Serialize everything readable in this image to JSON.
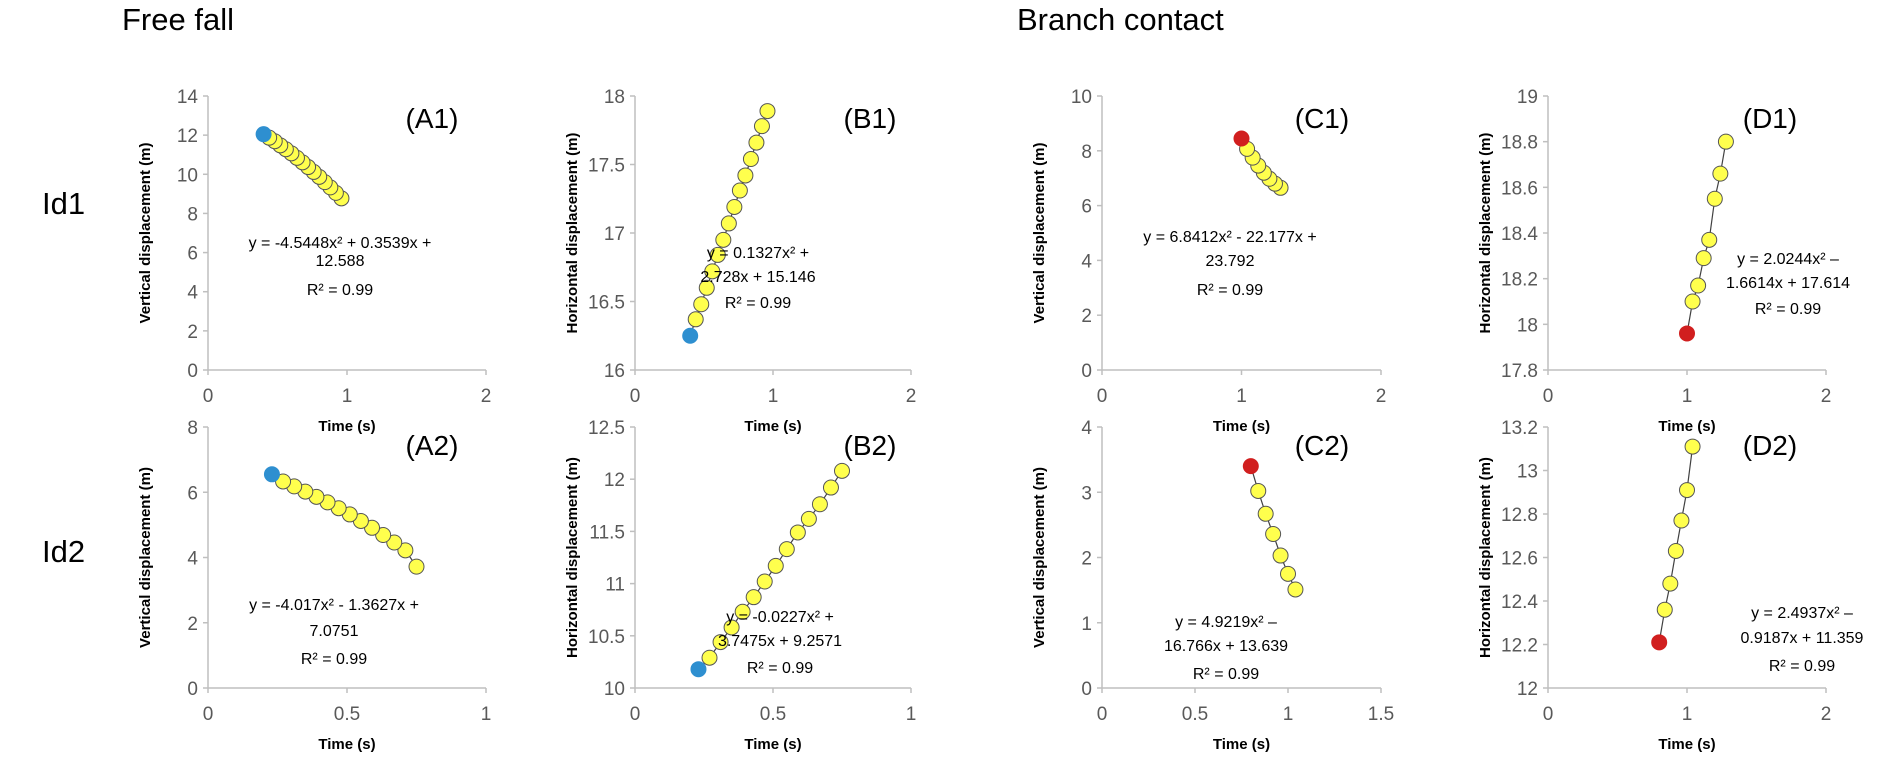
{
  "headings": {
    "free_fall": "Free fall",
    "branch_contact": "Branch contact"
  },
  "rows": [
    "Id1",
    "Id2"
  ],
  "colors": {
    "point_fill": "#ffff4d",
    "point_stroke": "#555555",
    "start_blue": "#2e8fd0",
    "start_red": "#d11f1f",
    "axis": "#bfbfbf",
    "line": "#404040"
  },
  "chart_data": [
    {
      "id": "A1",
      "type": "scatter",
      "panel_label": "(A1)",
      "xlabel": "Time (s)",
      "ylabel": "Vertical displacement (m)",
      "xlim": [
        0,
        2
      ],
      "ylim": [
        0,
        14
      ],
      "xticks": [
        "0",
        "1",
        "2"
      ],
      "xtickvals": [
        0,
        1,
        2
      ],
      "yticks": [
        "0",
        "2",
        "4",
        "6",
        "8",
        "10",
        "12",
        "14"
      ],
      "ytickvals": [
        0,
        2,
        4,
        6,
        8,
        10,
        12,
        14
      ],
      "start_color": "blue",
      "points": [
        [
          0.4,
          12.05
        ],
        [
          0.44,
          11.87
        ],
        [
          0.48,
          11.69
        ],
        [
          0.52,
          11.48
        ],
        [
          0.56,
          11.28
        ],
        [
          0.6,
          11.07
        ],
        [
          0.64,
          10.84
        ],
        [
          0.68,
          10.61
        ],
        [
          0.72,
          10.37
        ],
        [
          0.76,
          10.12
        ],
        [
          0.8,
          9.87
        ],
        [
          0.84,
          9.6
        ],
        [
          0.88,
          9.33
        ],
        [
          0.92,
          9.05
        ],
        [
          0.96,
          8.77
        ]
      ],
      "equation": [
        "y = -4.5448x² + 0.3539x +",
        "12.588",
        "R² = 0.99"
      ]
    },
    {
      "id": "B1",
      "type": "scatter",
      "panel_label": "(B1)",
      "xlabel": "Time (s)",
      "ylabel": "Horizontal displacement (m)",
      "xlim": [
        0,
        2
      ],
      "ylim": [
        16,
        18
      ],
      "xticks": [
        "0",
        "1",
        "2"
      ],
      "xtickvals": [
        0,
        1,
        2
      ],
      "yticks": [
        "16",
        "16.5",
        "17",
        "17.5",
        "18"
      ],
      "ytickvals": [
        16,
        16.5,
        17,
        17.5,
        18
      ],
      "start_color": "blue",
      "points": [
        [
          0.4,
          16.25
        ],
        [
          0.44,
          16.37
        ],
        [
          0.48,
          16.48
        ],
        [
          0.52,
          16.6
        ],
        [
          0.56,
          16.72
        ],
        [
          0.6,
          16.84
        ],
        [
          0.64,
          16.95
        ],
        [
          0.68,
          17.07
        ],
        [
          0.72,
          17.19
        ],
        [
          0.76,
          17.31
        ],
        [
          0.8,
          17.42
        ],
        [
          0.84,
          17.54
        ],
        [
          0.88,
          17.66
        ],
        [
          0.92,
          17.78
        ],
        [
          0.96,
          17.89
        ]
      ],
      "equation": [
        "y = 0.1327x² +",
        "2.728x + 15.146",
        "R² = 0.99"
      ]
    },
    {
      "id": "C1",
      "type": "scatter",
      "panel_label": "(C1)",
      "xlabel": "Time (s)",
      "ylabel": "Vertical displacement (m)",
      "xlim": [
        0,
        2
      ],
      "ylim": [
        0,
        10
      ],
      "xticks": [
        "0",
        "1",
        "2"
      ],
      "xtickvals": [
        0,
        1,
        2
      ],
      "yticks": [
        "0",
        "2",
        "4",
        "6",
        "8",
        "10"
      ],
      "ytickvals": [
        0,
        2,
        4,
        6,
        8,
        10
      ],
      "start_color": "red",
      "points": [
        [
          1.0,
          8.45
        ],
        [
          1.04,
          8.07
        ],
        [
          1.08,
          7.75
        ],
        [
          1.12,
          7.46
        ],
        [
          1.16,
          7.2
        ],
        [
          1.2,
          6.98
        ],
        [
          1.24,
          6.8
        ],
        [
          1.28,
          6.65
        ]
      ],
      "equation": [
        "y = 6.8412x² - 22.177x +",
        "23.792",
        "R² = 0.99"
      ]
    },
    {
      "id": "D1",
      "type": "scatter",
      "panel_label": "(D1)",
      "xlabel": "Time (s)",
      "ylabel": "Horizontal displacement (m)",
      "xlim": [
        0,
        2
      ],
      "ylim": [
        17.8,
        19
      ],
      "xticks": [
        "0",
        "1",
        "2"
      ],
      "xtickvals": [
        0,
        1,
        2
      ],
      "yticks": [
        "17.8",
        "18",
        "18.2",
        "18.4",
        "18.6",
        "18.8",
        "19"
      ],
      "ytickvals": [
        17.8,
        18,
        18.2,
        18.4,
        18.6,
        18.8,
        19
      ],
      "start_color": "red",
      "points": [
        [
          1.0,
          17.96
        ],
        [
          1.04,
          18.1
        ],
        [
          1.08,
          18.17
        ],
        [
          1.12,
          18.29
        ],
        [
          1.16,
          18.37
        ],
        [
          1.2,
          18.55
        ],
        [
          1.24,
          18.66
        ],
        [
          1.28,
          18.8
        ]
      ],
      "equation": [
        "y = 2.0244x² –",
        "1.6614x + 17.614",
        "R² = 0.99"
      ]
    },
    {
      "id": "A2",
      "type": "scatter",
      "panel_label": "(A2)",
      "xlabel": "Time (s)",
      "ylabel": "Vertical displacement (m)",
      "xlim": [
        0,
        1
      ],
      "ylim": [
        0,
        8
      ],
      "xticks": [
        "0",
        "0.5",
        "1"
      ],
      "xtickvals": [
        0,
        0.5,
        1
      ],
      "yticks": [
        "0",
        "2",
        "4",
        "6",
        "8"
      ],
      "ytickvals": [
        0,
        2,
        4,
        6,
        8
      ],
      "start_color": "blue",
      "points": [
        [
          0.23,
          6.55
        ],
        [
          0.27,
          6.33
        ],
        [
          0.31,
          6.18
        ],
        [
          0.35,
          6.02
        ],
        [
          0.39,
          5.86
        ],
        [
          0.43,
          5.69
        ],
        [
          0.47,
          5.51
        ],
        [
          0.51,
          5.32
        ],
        [
          0.55,
          5.12
        ],
        [
          0.59,
          4.91
        ],
        [
          0.63,
          4.69
        ],
        [
          0.67,
          4.46
        ],
        [
          0.71,
          4.22
        ],
        [
          0.75,
          3.72
        ]
      ],
      "equation": [
        "y = -4.017x² - 1.3627x +",
        "7.0751",
        "R² = 0.99"
      ]
    },
    {
      "id": "B2",
      "type": "scatter",
      "panel_label": "(B2)",
      "xlabel": "Time (s)",
      "ylabel": "Horizontal displacement (m)",
      "xlim": [
        0,
        1
      ],
      "ylim": [
        10,
        12.5
      ],
      "xticks": [
        "0",
        "0.5",
        "1"
      ],
      "xtickvals": [
        0,
        0.5,
        1
      ],
      "yticks": [
        "10",
        "10.5",
        "11",
        "11.5",
        "12",
        "12.5"
      ],
      "ytickvals": [
        10,
        10.5,
        11,
        11.5,
        12,
        12.5
      ],
      "start_color": "blue",
      "points": [
        [
          0.23,
          10.18
        ],
        [
          0.27,
          10.29
        ],
        [
          0.31,
          10.44
        ],
        [
          0.35,
          10.58
        ],
        [
          0.39,
          10.73
        ],
        [
          0.43,
          10.87
        ],
        [
          0.47,
          11.02
        ],
        [
          0.51,
          11.17
        ],
        [
          0.55,
          11.33
        ],
        [
          0.59,
          11.49
        ],
        [
          0.63,
          11.62
        ],
        [
          0.67,
          11.76
        ],
        [
          0.71,
          11.92
        ],
        [
          0.75,
          12.08
        ]
      ],
      "equation": [
        "y = -0.0227x² +",
        "3.7475x + 9.2571",
        "R² = 0.99"
      ]
    },
    {
      "id": "C2",
      "type": "scatter",
      "panel_label": "(C2)",
      "xlabel": "Time (s)",
      "ylabel": "Vertical displacement (m)",
      "xlim": [
        0,
        1.5
      ],
      "ylim": [
        0,
        4
      ],
      "xticks": [
        "0",
        "0.5",
        "1",
        "1.5"
      ],
      "xtickvals": [
        0,
        0.5,
        1,
        1.5
      ],
      "yticks": [
        "0",
        "1",
        "2",
        "3",
        "4"
      ],
      "ytickvals": [
        0,
        1,
        2,
        3,
        4
      ],
      "start_color": "red",
      "points": [
        [
          0.8,
          3.4
        ],
        [
          0.84,
          3.02
        ],
        [
          0.88,
          2.67
        ],
        [
          0.92,
          2.36
        ],
        [
          0.96,
          2.03
        ],
        [
          1.0,
          1.75
        ],
        [
          1.04,
          1.51
        ]
      ],
      "equation": [
        "y = 4.9219x² –",
        "16.766x + 13.639",
        "R² = 0.99"
      ]
    },
    {
      "id": "D2",
      "type": "scatter",
      "panel_label": "(D2)",
      "xlabel": "Time (s)",
      "ylabel": "Horizontal displacement (m)",
      "xlim": [
        0,
        2
      ],
      "ylim": [
        12,
        13.2
      ],
      "xticks": [
        "0",
        "1",
        "2"
      ],
      "xtickvals": [
        0,
        1,
        2
      ],
      "yticks": [
        "12",
        "12.2",
        "12.4",
        "12.6",
        "12.8",
        "13",
        "13.2"
      ],
      "ytickvals": [
        12,
        12.2,
        12.4,
        12.6,
        12.8,
        13,
        13.2
      ],
      "start_color": "red",
      "points": [
        [
          0.8,
          12.21
        ],
        [
          0.84,
          12.36
        ],
        [
          0.88,
          12.48
        ],
        [
          0.92,
          12.63
        ],
        [
          0.96,
          12.77
        ],
        [
          1.0,
          12.91
        ],
        [
          1.04,
          13.11
        ]
      ],
      "equation": [
        "y = 2.4937x² –",
        "0.9187x + 11.359",
        "R² = 0.99"
      ]
    }
  ]
}
